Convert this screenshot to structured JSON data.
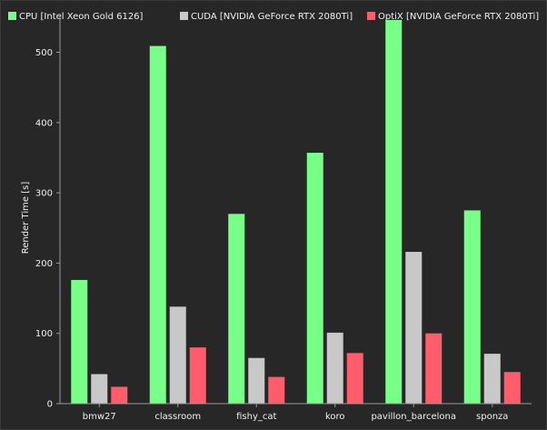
{
  "chart_data": {
    "type": "bar",
    "categories": [
      "bmw27",
      "classroom",
      "fishy_cat",
      "koro",
      "pavillon_barcelona",
      "sponza"
    ],
    "series": [
      {
        "name": "CPU [Intel Xeon Gold 6126]",
        "color": "#77ff88",
        "values": [
          176,
          509,
          270,
          357,
          546,
          275
        ]
      },
      {
        "name": "CUDA [NVIDIA GeForce RTX 2080Ti]",
        "color": "#c8c8c8",
        "values": [
          42,
          138,
          65,
          101,
          216,
          71
        ]
      },
      {
        "name": "OptiX [NVIDIA GeForce RTX 2080Ti]",
        "color": "#ff5c6c",
        "values": [
          24,
          80,
          38,
          72,
          100,
          45
        ]
      }
    ],
    "ylabel": "Render Time [s]",
    "xlabel": "",
    "ylim": [
      0,
      555
    ],
    "yticks": [
      0,
      100,
      200,
      300,
      400,
      500
    ],
    "grid": false,
    "legend_position": "top-left"
  }
}
